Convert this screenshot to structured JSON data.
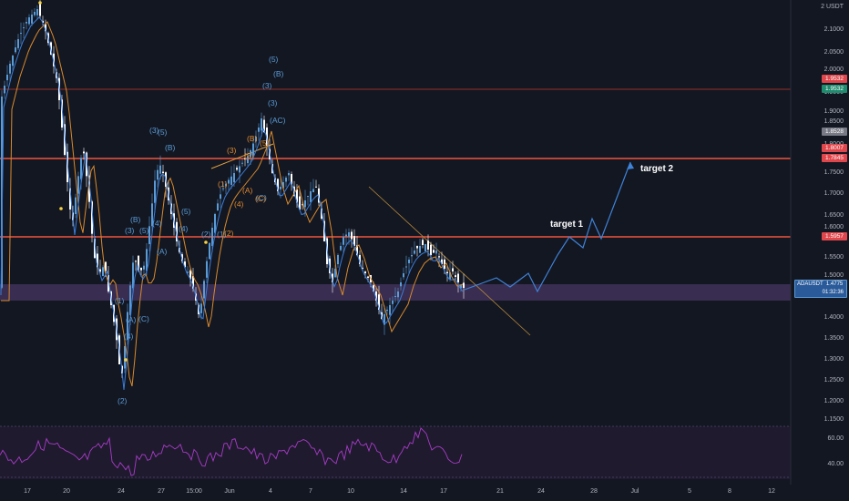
{
  "chart_data": {
    "type": "candlestick",
    "symbol_tag": "ADAUSDT",
    "last_price": "1.4775",
    "countdown": "01:32:36",
    "price_axis_currency": "USDT",
    "y_ticks": [
      "2.1000",
      "2.0500",
      "2.0000",
      "1.9500",
      "1.9000",
      "1.8500",
      "1.8000",
      "1.7500",
      "1.7000",
      "1.6500",
      "1.6000",
      "1.5500",
      "1.5000",
      "1.4500",
      "1.4000",
      "1.3500",
      "1.3000",
      "1.2500",
      "1.2000",
      "1.1500"
    ],
    "y_ticks_top_label": "2",
    "x_ticks": [
      "17",
      "20",
      "24",
      "27",
      "15:00",
      "Jun",
      "4",
      "7",
      "10",
      "14",
      "17",
      "21",
      "24",
      "28",
      "Jul",
      "5",
      "8",
      "12"
    ],
    "price_tags": [
      {
        "value": "1.9532",
        "color": "#e0474c"
      },
      {
        "value": "1.9532",
        "color": "#1e8c6e"
      },
      {
        "value": "1.8528",
        "color": "#787b86"
      },
      {
        "value": "1.8007",
        "color": "#e0474c"
      },
      {
        "value": "1.7845",
        "color": "#e0474c"
      },
      {
        "value": "1.5957",
        "color": "#e0474c"
      }
    ],
    "horizontal_levels": [
      1.9532,
      1.7845,
      1.5957
    ],
    "support_zone": [
      1.452,
      1.487
    ],
    "annotations": [
      "target 1",
      "target 2"
    ],
    "rsi_ticks": [
      "60.00",
      "40.00"
    ],
    "wave_labels_blue": [
      "(5)",
      "(B)",
      "(3)",
      "(AC)",
      "(3)",
      "(5)",
      "(B)",
      "(5)",
      "(3)",
      "(B)",
      "(4)",
      "(A)",
      "(1)",
      "(4)",
      "(2)",
      "(C)",
      "(A)",
      "(C)",
      "(1)",
      "(4)",
      "(2)",
      "(5)",
      "(3)"
    ],
    "wave_labels_orange": [
      "(3)",
      "(5)",
      "(B)",
      "(1)",
      "(A)",
      "(4)",
      "(C)",
      "(2)",
      "(5)"
    ]
  },
  "colors": {
    "background": "#131722",
    "candle_up": "#5b9bd5",
    "candle_down": "#ffffff",
    "level_line": "#f0553d",
    "ma_fast": "#3b7dd8",
    "ma_slow": "#d98a2c",
    "forecast": "#3f83d8",
    "rsi_line": "#a83cc8",
    "zone": "#6b4b8a"
  }
}
